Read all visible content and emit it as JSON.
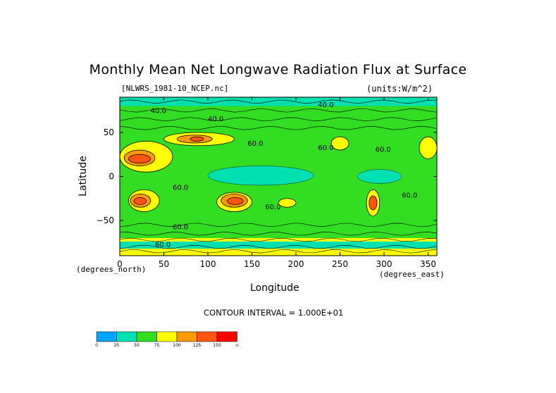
{
  "chart_data": {
    "type": "heatmap",
    "title": "Monthly Mean Net Longwave Radiation Flux at Surface",
    "file_label": "[NLWRS_1981-10_NCEP.nc]",
    "units_label": "(units:W/m^2)",
    "xlabel": "Longitude",
    "ylabel": "Latitude",
    "x_units": "(degrees_east)",
    "y_units": "(degrees_north)",
    "xlim": [
      0,
      360
    ],
    "ylim": [
      -90,
      90
    ],
    "x_ticks": [
      0,
      50,
      100,
      150,
      200,
      250,
      300,
      350
    ],
    "y_ticks": [
      50,
      0,
      -50
    ],
    "contour_interval_label": "CONTOUR INTERVAL = 1.000E+01",
    "contour_labels": [
      "40.0",
      "60.0"
    ],
    "colorbar": {
      "colors": [
        "#00a5ff",
        "#00e0b0",
        "#33dd22",
        "#ffff00",
        "#ff9900",
        "#ff5511",
        "#ff0000"
      ],
      "tick_labels": [
        "0",
        "25",
        "50",
        "75",
        "100",
        "125",
        "150",
        "∞"
      ]
    },
    "regions": [
      {
        "lon": [
          0,
          360
        ],
        "lat": [
          -90,
          90
        ],
        "level": 2
      },
      {
        "lon": [
          100,
          220
        ],
        "lat": [
          -10,
          12
        ],
        "level": 1
      },
      {
        "lon": [
          270,
          320
        ],
        "lat": [
          -8,
          8
        ],
        "level": 1
      },
      {
        "lon": [
          0,
          60
        ],
        "lat": [
          5,
          40
        ],
        "level": 3
      },
      {
        "lon": [
          5,
          40
        ],
        "lat": [
          12,
          30
        ],
        "level": 4
      },
      {
        "lon": [
          10,
          35
        ],
        "lat": [
          15,
          25
        ],
        "level": 5
      },
      {
        "lon": [
          50,
          130
        ],
        "lat": [
          35,
          50
        ],
        "level": 3
      },
      {
        "lon": [
          65,
          105
        ],
        "lat": [
          38,
          47
        ],
        "level": 4
      },
      {
        "lon": [
          80,
          95
        ],
        "lat": [
          40,
          45
        ],
        "level": 5
      },
      {
        "lon": [
          10,
          45
        ],
        "lat": [
          -40,
          -15
        ],
        "level": 3
      },
      {
        "lon": [
          12,
          35
        ],
        "lat": [
          -35,
          -20
        ],
        "level": 4
      },
      {
        "lon": [
          16,
          30
        ],
        "lat": [
          -32,
          -24
        ],
        "level": 5
      },
      {
        "lon": [
          110,
          150
        ],
        "lat": [
          -40,
          -18
        ],
        "level": 3
      },
      {
        "lon": [
          115,
          145
        ],
        "lat": [
          -35,
          -20
        ],
        "level": 4
      },
      {
        "lon": [
          122,
          140
        ],
        "lat": [
          -32,
          -24
        ],
        "level": 5
      },
      {
        "lon": [
          280,
          295
        ],
        "lat": [
          -45,
          -15
        ],
        "level": 3
      },
      {
        "lon": [
          283,
          292
        ],
        "lat": [
          -38,
          -22
        ],
        "level": 5
      },
      {
        "lon": [
          240,
          260
        ],
        "lat": [
          30,
          45
        ],
        "level": 3
      },
      {
        "lon": [
          340,
          360
        ],
        "lat": [
          20,
          45
        ],
        "level": 3
      },
      {
        "lon": [
          0,
          360
        ],
        "lat": [
          -90,
          -70
        ],
        "level": 3
      },
      {
        "lon": [
          0,
          360
        ],
        "lat": [
          -82,
          -74
        ],
        "level": 1
      },
      {
        "lon": [
          180,
          200
        ],
        "lat": [
          -35,
          -25
        ],
        "level": 3
      },
      {
        "lon": [
          0,
          360
        ],
        "lat": [
          80,
          90
        ],
        "level": 1
      }
    ]
  }
}
